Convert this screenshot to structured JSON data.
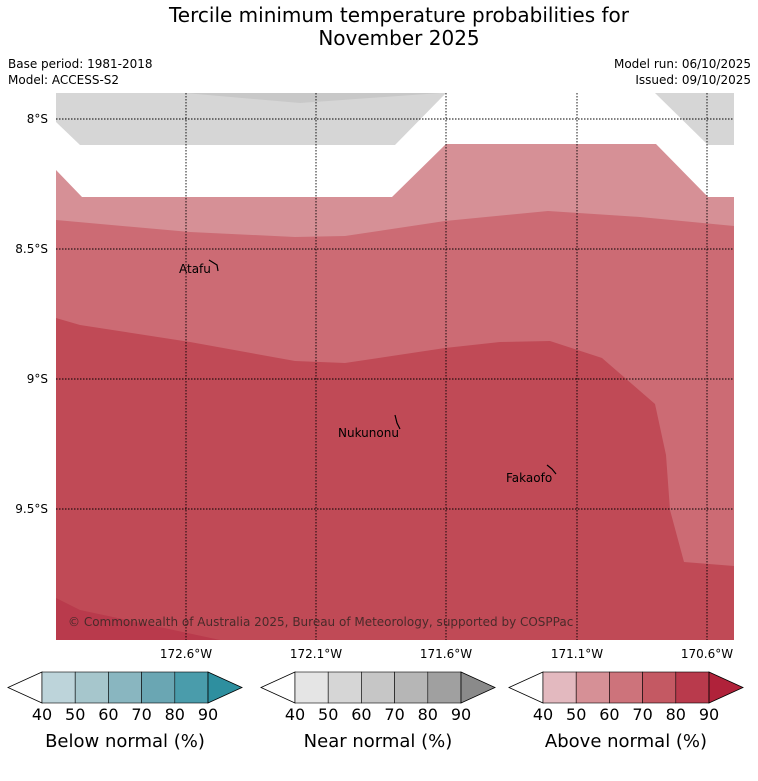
{
  "title_line1": "Tercile minimum temperature probabilities for",
  "title_line2": "November 2025",
  "base_period": "Base period: 1981-2018",
  "model": "Model: ACCESS-S2",
  "model_run": "Model run: 06/10/2025",
  "issued": "Issued: 09/10/2025",
  "lat_labels": [
    "8°S",
    "8.5°S",
    "9°S",
    "9.5°S"
  ],
  "lon_labels": [
    "172.6°W",
    "172.1°W",
    "171.6°W",
    "171.1°W",
    "170.6°W"
  ],
  "places": [
    {
      "name": "Atafu"
    },
    {
      "name": "Nukunonu"
    },
    {
      "name": "Fakaofo"
    }
  ],
  "copyright": "© Commonwealth of Australia 2025, Bureau of Meteorology, supported by COSPPac",
  "colorbars": [
    {
      "label": "Below normal (%)",
      "ticks": [
        "40",
        "50",
        "60",
        "70",
        "80",
        "90"
      ],
      "colors": [
        "#bdd4da",
        "#a6c6cc",
        "#89b6c0",
        "#6aa6b3",
        "#4a9cab",
        "#2e8f9f"
      ]
    },
    {
      "label": "Near normal (%)",
      "ticks": [
        "40",
        "50",
        "60",
        "70",
        "80",
        "90"
      ],
      "colors": [
        "#e5e5e5",
        "#d6d6d6",
        "#c6c6c6",
        "#b6b6b6",
        "#a0a0a0",
        "#8a8a8a"
      ]
    },
    {
      "label": "Above normal (%)",
      "ticks": [
        "40",
        "50",
        "60",
        "70",
        "80",
        "90"
      ],
      "colors": [
        "#e3b9bf",
        "#d69096",
        "#cd737b",
        "#c45963",
        "#b93a4c",
        "#b0223a"
      ]
    }
  ]
}
